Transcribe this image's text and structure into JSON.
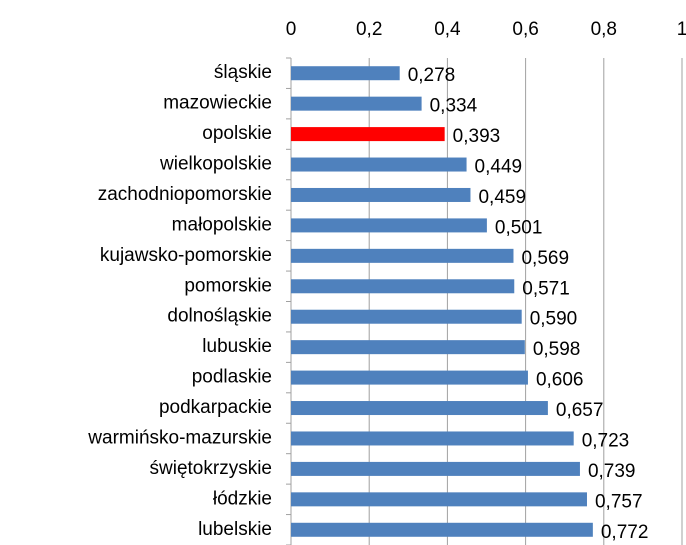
{
  "chart_data": {
    "type": "bar",
    "orientation": "horizontal",
    "categories": [
      "śląskie",
      "mazowieckie",
      "opolskie",
      "wielkopolskie",
      "zachodniopomorskie",
      "małopolskie",
      "kujawsko-pomorskie",
      "pomorskie",
      "dolnośląskie",
      "lubuskie",
      "podlaskie",
      "podkarpackie",
      "warmińsko-mazurskie",
      "świętokrzyskie",
      "łódzkie",
      "lubelskie"
    ],
    "values": [
      0.278,
      0.334,
      0.393,
      0.449,
      0.459,
      0.501,
      0.569,
      0.571,
      0.59,
      0.598,
      0.606,
      0.657,
      0.723,
      0.739,
      0.757,
      0.772
    ],
    "value_labels": [
      "0,278",
      "0,334",
      "0,393",
      "0,449",
      "0,459",
      "0,501",
      "0,569",
      "0,571",
      "0,590",
      "0,598",
      "0,606",
      "0,657",
      "0,723",
      "0,739",
      "0,757",
      "0,772"
    ],
    "colors": [
      "#4f81bd",
      "#4f81bd",
      "#ff0000",
      "#4f81bd",
      "#4f81bd",
      "#4f81bd",
      "#4f81bd",
      "#4f81bd",
      "#4f81bd",
      "#4f81bd",
      "#4f81bd",
      "#4f81bd",
      "#4f81bd",
      "#4f81bd",
      "#4f81bd",
      "#4f81bd"
    ],
    "xlim": [
      0,
      1
    ],
    "xticks": [
      0,
      {
        "value": 0.2,
        "label": "0,2"
      },
      {
        "value": 0.4,
        "label": "0,4"
      },
      {
        "value": 0.6,
        "label": "0,6"
      },
      {
        "value": 0.8,
        "label": "0,8"
      },
      1
    ],
    "grid": true
  }
}
